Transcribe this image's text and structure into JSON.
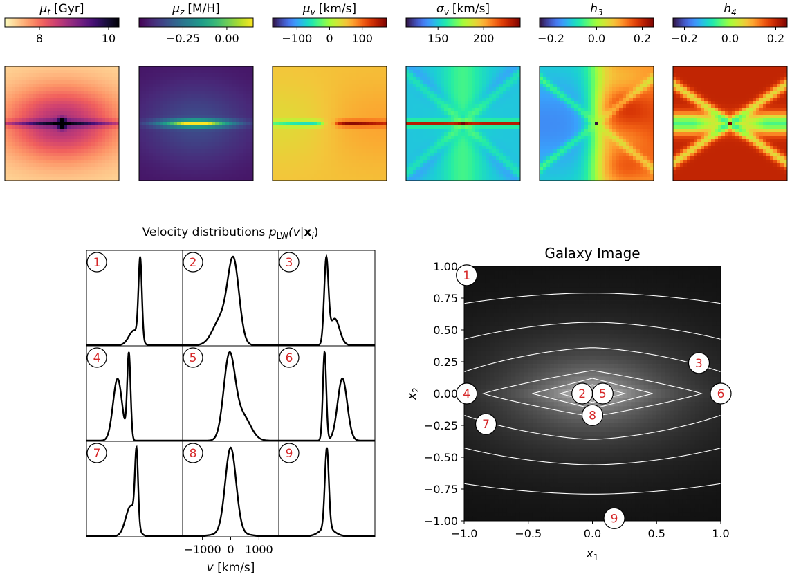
{
  "chart_data": [
    {
      "type": "heatmap",
      "quantity": "age",
      "title_sym": "μ",
      "title_sub": "t",
      "title_unit": "[Gyr]",
      "colormap": "magma_r",
      "colorbar_range": [
        7.0,
        10.3
      ],
      "colorbar_ticks": [
        {
          "value": 8,
          "label": "8"
        },
        {
          "value": 10,
          "label": "10"
        }
      ]
    },
    {
      "type": "heatmap",
      "quantity": "metallicity",
      "title_sym": "μ",
      "title_sub": "z",
      "title_unit": "[M/H]",
      "colormap": "viridis",
      "colorbar_range": [
        -0.5,
        0.15
      ],
      "colorbar_ticks": [
        {
          "value": -0.25,
          "label": "−0.25"
        },
        {
          "value": 0.0,
          "label": "0.00"
        }
      ]
    },
    {
      "type": "heatmap",
      "quantity": "mean-velocity",
      "title_sym": "μ",
      "title_sub": "v",
      "title_unit": "[km/s]",
      "colormap": "turbo",
      "colorbar_range": [
        -175,
        175
      ],
      "colorbar_ticks": [
        {
          "value": -100,
          "label": "−100"
        },
        {
          "value": 0,
          "label": "0"
        },
        {
          "value": 100,
          "label": "100"
        }
      ]
    },
    {
      "type": "heatmap",
      "quantity": "dispersion",
      "title_sym": "σ",
      "title_sub": "v",
      "title_unit": "[km/s]",
      "colormap": "turbo",
      "colorbar_range": [
        115,
        240
      ],
      "colorbar_ticks": [
        {
          "value": 150,
          "label": "150"
        },
        {
          "value": 200,
          "label": "200"
        }
      ]
    },
    {
      "type": "heatmap",
      "quantity": "h3",
      "title_sym": "h",
      "title_sub": "3",
      "title_unit": "",
      "colormap": "turbo",
      "colorbar_range": [
        -0.25,
        0.25
      ],
      "colorbar_ticks": [
        {
          "value": -0.2,
          "label": "−0.2"
        },
        {
          "value": 0.0,
          "label": "0.0"
        },
        {
          "value": 0.2,
          "label": "0.2"
        }
      ]
    },
    {
      "type": "heatmap",
      "quantity": "h4",
      "title_sym": "h",
      "title_sub": "4",
      "title_unit": "",
      "colormap": "turbo",
      "colorbar_range": [
        -0.25,
        0.25
      ],
      "colorbar_ticks": [
        {
          "value": -0.2,
          "label": "−0.2"
        },
        {
          "value": 0.0,
          "label": "0.0"
        },
        {
          "value": 0.2,
          "label": "0.2"
        }
      ]
    },
    {
      "type": "line",
      "title_main": "Velocity distributions ",
      "title_func": "p",
      "title_sub": "LW",
      "title_args": "(v|",
      "title_bold": "x",
      "title_idx": "i",
      "title_close": ")",
      "xlabel_sym": "v",
      "xlabel_unit": " [km/s]",
      "xlim": [
        -1700,
        1700
      ],
      "x_ticks": [
        {
          "value": -1000,
          "label": "−1000"
        },
        {
          "value": 0,
          "label": "0"
        },
        {
          "value": 1000,
          "label": "1000"
        }
      ],
      "panels": [
        {
          "label": "1",
          "components": [
            {
              "mu": 200,
              "sigma": 60,
              "w": 1.0
            },
            {
              "mu": -20,
              "sigma": 180,
              "w": 0.18
            }
          ]
        },
        {
          "label": "2",
          "components": [
            {
              "mu": 100,
              "sigma": 200,
              "w": 1.0
            },
            {
              "mu": -350,
              "sigma": 280,
              "w": 0.32
            }
          ]
        },
        {
          "label": "3",
          "components": [
            {
              "mu": -20,
              "sigma": 75,
              "w": 1.0
            },
            {
              "mu": 280,
              "sigma": 170,
              "w": 0.32
            }
          ]
        },
        {
          "label": "4",
          "components": [
            {
              "mu": -200,
              "sigma": 60,
              "w": 1.0
            },
            {
              "mu": -600,
              "sigma": 160,
              "w": 0.72
            }
          ]
        },
        {
          "label": "5",
          "components": [
            {
              "mu": -50,
              "sigma": 200,
              "w": 1.0
            },
            {
              "mu": 420,
              "sigma": 280,
              "w": 0.3
            }
          ]
        },
        {
          "label": "6",
          "components": [
            {
              "mu": -80,
              "sigma": 60,
              "w": 1.0
            },
            {
              "mu": 550,
              "sigma": 170,
              "w": 0.7
            }
          ]
        },
        {
          "label": "7",
          "components": [
            {
              "mu": 70,
              "sigma": 55,
              "w": 1.0
            },
            {
              "mu": -130,
              "sigma": 180,
              "w": 0.42
            }
          ]
        },
        {
          "label": "8",
          "components": [
            {
              "mu": 0,
              "sigma": 190,
              "w": 1.0
            },
            {
              "mu": 0,
              "sigma": 450,
              "w": 0.05
            }
          ]
        },
        {
          "label": "9",
          "components": [
            {
              "mu": 0,
              "sigma": 70,
              "w": 1.0
            },
            {
              "mu": 0,
              "sigma": 250,
              "w": 0.1
            }
          ]
        }
      ]
    },
    {
      "type": "contour",
      "title": "Galaxy Image",
      "xlabel_sym": "x",
      "xlabel_sub": "1",
      "ylabel_sym": "x",
      "ylabel_sub": "2",
      "xlim": [
        -1.0,
        1.0
      ],
      "ylim": [
        -1.0,
        1.0
      ],
      "x_ticks": [
        {
          "value": -1.0,
          "label": "−1.0"
        },
        {
          "value": -0.5,
          "label": "−0.5"
        },
        {
          "value": 0.0,
          "label": "0.0"
        },
        {
          "value": 0.5,
          "label": "0.5"
        },
        {
          "value": 1.0,
          "label": "1.0"
        }
      ],
      "y_ticks": [
        {
          "value": 1.0,
          "label": "1.00"
        },
        {
          "value": 0.75,
          "label": "0.75"
        },
        {
          "value": 0.5,
          "label": "0.50"
        },
        {
          "value": 0.25,
          "label": "0.25"
        },
        {
          "value": 0.0,
          "label": "0.00"
        },
        {
          "value": -0.25,
          "label": "−0.25"
        },
        {
          "value": -0.5,
          "label": "−0.50"
        },
        {
          "value": -0.75,
          "label": "−0.75"
        },
        {
          "value": -1.0,
          "label": "−1.00"
        }
      ],
      "markers": [
        {
          "label": "1",
          "x": -0.98,
          "y": 0.93
        },
        {
          "label": "2",
          "x": -0.08,
          "y": 0.0
        },
        {
          "label": "3",
          "x": 0.83,
          "y": 0.24
        },
        {
          "label": "4",
          "x": -0.98,
          "y": 0.0
        },
        {
          "label": "5",
          "x": 0.08,
          "y": 0.0
        },
        {
          "label": "6",
          "x": 1.0,
          "y": 0.0
        },
        {
          "label": "7",
          "x": -0.83,
          "y": -0.24
        },
        {
          "label": "8",
          "x": 0.0,
          "y": -0.17
        },
        {
          "label": "9",
          "x": 0.17,
          "y": -0.98
        }
      ]
    }
  ]
}
